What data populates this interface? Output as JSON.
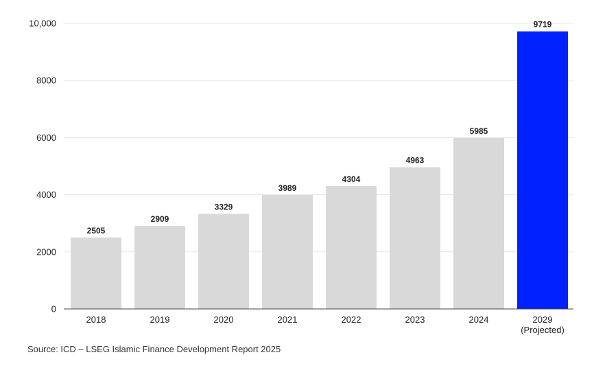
{
  "chart_data": {
    "type": "bar",
    "categories": [
      [
        "2018"
      ],
      [
        "2019"
      ],
      [
        "2020"
      ],
      [
        "2021"
      ],
      [
        "2022"
      ],
      [
        "2023"
      ],
      [
        "2024"
      ],
      [
        "2029",
        "(Projected)"
      ]
    ],
    "values": [
      2505,
      2909,
      3329,
      3989,
      4304,
      4963,
      5985,
      9719
    ],
    "value_labels": [
      "2505",
      "2909",
      "3329",
      "3989",
      "4304",
      "4963",
      "5985",
      "9719"
    ],
    "ylim": [
      0,
      10000
    ],
    "yticks": [
      0,
      2000,
      4000,
      6000,
      8000,
      10000
    ],
    "ytick_labels": [
      "0",
      "2000",
      "4000",
      "6000",
      "8000",
      "10,000"
    ],
    "grid": true,
    "colors": {
      "historical": "#d9d9d9",
      "projected": "#0022ff"
    },
    "title": "",
    "xlabel": "",
    "ylabel": ""
  },
  "source": "Source: ICD – LSEG Islamic Finance Development Report 2025"
}
